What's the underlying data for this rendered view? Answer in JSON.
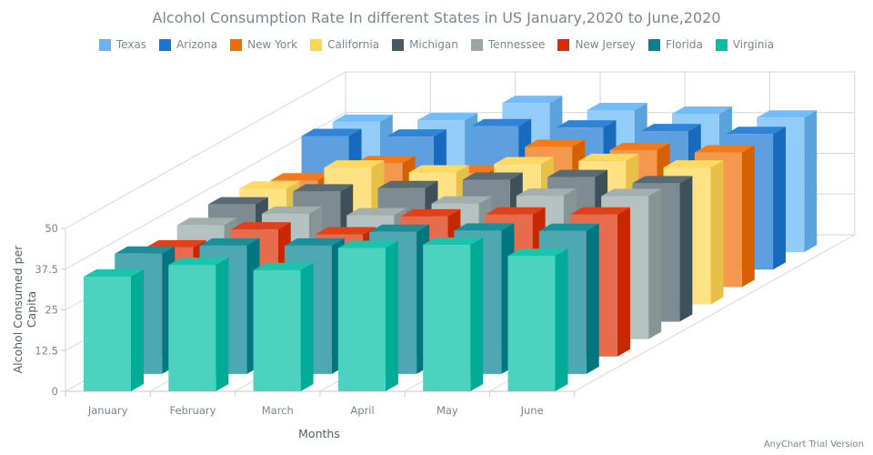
{
  "chart_data": {
    "type": "bar3d",
    "title": "Alcohol Consumption Rate In different States in US January,2020 to June,2020",
    "xlabel": "Months",
    "ylabel": "Alcohol Consumed per Capita",
    "ylim": [
      0,
      50
    ],
    "yticks": [
      "0",
      "12.5",
      "25",
      "37.5",
      "50"
    ],
    "grid": true,
    "legend_position": "top",
    "categories": [
      "January",
      "February",
      "March",
      "April",
      "May",
      "June"
    ],
    "series": [
      {
        "name": "Texas",
        "color": "#64B5F6",
        "values": [
          40,
          40.5,
          45.8,
          43.6,
          42.5,
          41.3
        ]
      },
      {
        "name": "Arizona",
        "color": "#1976D2",
        "values": [
          41,
          40.8,
          44,
          43.6,
          42.5,
          41.6
        ]
      },
      {
        "name": "New York",
        "color": "#EF6C00",
        "values": [
          32.7,
          38,
          35,
          43,
          42,
          41.3
        ]
      },
      {
        "name": "California",
        "color": "#FFD54F",
        "values": [
          35.5,
          42,
          40.5,
          43,
          44,
          42
        ]
      },
      {
        "name": "Michigan",
        "color": "#455A64",
        "values": [
          36,
          40,
          41,
          43.6,
          44.4,
          42.5
        ]
      },
      {
        "name": "Tennessee",
        "color": "#96A6A6",
        "values": [
          35,
          38.5,
          38,
          41.6,
          44,
          43.9
        ]
      },
      {
        "name": "New Jersey",
        "color": "#DD2C00",
        "values": [
          33.5,
          39,
          37.5,
          43,
          43.6,
          43.6
        ]
      },
      {
        "name": "Florida",
        "color": "#00838F",
        "values": [
          36.9,
          39.4,
          39.4,
          43.6,
          44,
          43.9
        ]
      },
      {
        "name": "Virginia",
        "color": "#00BFA5",
        "values": [
          35.2,
          38.8,
          37.2,
          44,
          45,
          41.6
        ]
      }
    ]
  },
  "credit": "AnyChart Trial Version"
}
